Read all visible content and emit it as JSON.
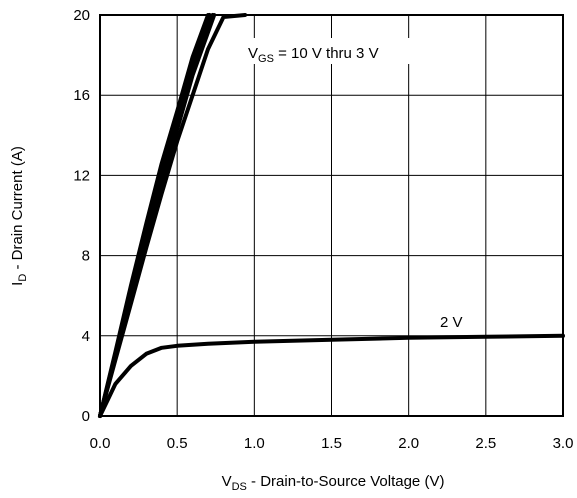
{
  "chart_data": {
    "type": "line",
    "xlabel": {
      "main": "V",
      "sub": "DS",
      "rest": " - Drain-to-Source Voltage (V)"
    },
    "ylabel": {
      "main": "I",
      "sub": "D",
      "rest": " - Drain Current (A)"
    },
    "xlim": [
      0,
      3
    ],
    "ylim": [
      0,
      20
    ],
    "xticks": [
      "0.0",
      "0.5",
      "1.0",
      "1.5",
      "2.0",
      "2.5",
      "3.0"
    ],
    "yticks": [
      "0",
      "4",
      "8",
      "12",
      "16",
      "20"
    ],
    "grid": true,
    "annotations": {
      "vgs_high": {
        "main": "V",
        "sub": "GS",
        "rest": " = 10 V thru 3 V"
      },
      "vgs_low": "2 V"
    },
    "series": [
      {
        "values": [
          [
            0,
            0
          ],
          [
            0.1,
            3.2
          ],
          [
            0.2,
            6.5
          ],
          [
            0.3,
            9.6
          ],
          [
            0.4,
            12.6
          ],
          [
            0.5,
            15.2
          ],
          [
            0.6,
            17.9
          ],
          [
            0.7,
            20
          ]
        ]
      },
      {
        "values": [
          [
            0,
            0
          ],
          [
            0.1,
            3.1
          ],
          [
            0.2,
            6.3
          ],
          [
            0.3,
            9.4
          ],
          [
            0.4,
            12.3
          ],
          [
            0.5,
            15.0
          ],
          [
            0.6,
            17.7
          ],
          [
            0.71,
            20
          ]
        ]
      },
      {
        "values": [
          [
            0,
            0
          ],
          [
            0.1,
            3.0
          ],
          [
            0.2,
            6.1
          ],
          [
            0.3,
            9.1
          ],
          [
            0.4,
            12.0
          ],
          [
            0.5,
            14.7
          ],
          [
            0.6,
            17.4
          ],
          [
            0.73,
            20
          ]
        ]
      },
      {
        "values": [
          [
            0,
            0
          ],
          [
            0.1,
            2.9
          ],
          [
            0.2,
            5.9
          ],
          [
            0.3,
            8.8
          ],
          [
            0.4,
            11.6
          ],
          [
            0.5,
            14.3
          ],
          [
            0.6,
            17.0
          ],
          [
            0.74,
            20
          ]
        ]
      },
      {
        "values": [
          [
            0,
            0
          ],
          [
            0.1,
            2.8
          ],
          [
            0.2,
            5.6
          ],
          [
            0.3,
            8.4
          ],
          [
            0.4,
            11.1
          ],
          [
            0.5,
            13.7
          ],
          [
            0.6,
            16.0
          ],
          [
            0.7,
            18.3
          ],
          [
            0.8,
            19.9
          ],
          [
            0.94,
            20
          ]
        ]
      },
      {
        "values": [
          [
            0,
            0
          ],
          [
            0.05,
            0.8
          ],
          [
            0.1,
            1.6
          ],
          [
            0.2,
            2.5
          ],
          [
            0.3,
            3.1
          ],
          [
            0.4,
            3.4
          ],
          [
            0.5,
            3.5
          ],
          [
            0.7,
            3.6
          ],
          [
            1.0,
            3.7
          ],
          [
            1.5,
            3.8
          ],
          [
            2.0,
            3.9
          ],
          [
            2.5,
            3.95
          ],
          [
            3.0,
            4.0
          ]
        ]
      }
    ]
  }
}
